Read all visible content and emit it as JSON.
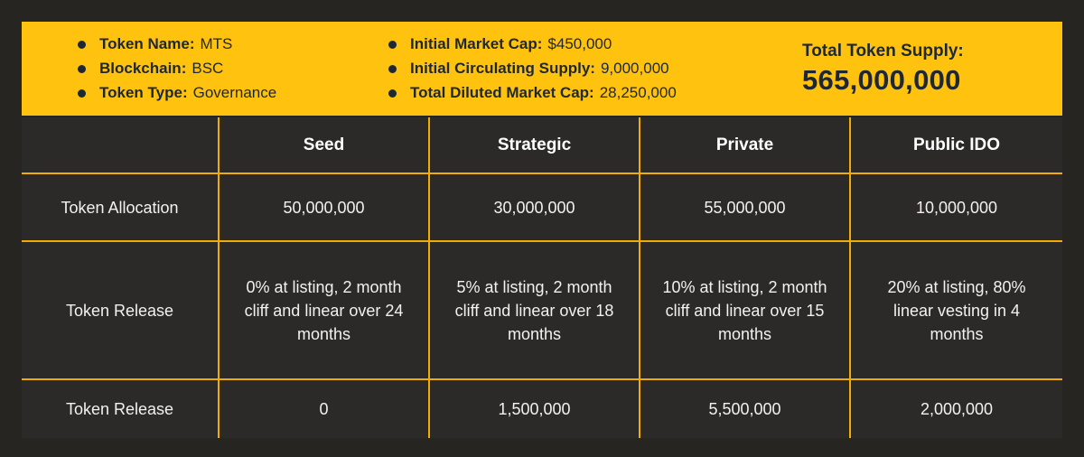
{
  "banner": {
    "bg_color": "#FFC20E",
    "text_color": "#1E2734",
    "info_left": [
      {
        "label": "Token Name:",
        "value": "MTS"
      },
      {
        "label": "Blockchain:",
        "value": "BSC"
      },
      {
        "label": "Token Type:",
        "value": "Governance"
      }
    ],
    "info_middle": [
      {
        "label": "Initial Market Cap:",
        "value": "$450,000"
      },
      {
        "label": "Initial Circulating Supply:",
        "value": "9,000,000"
      },
      {
        "label": "Total Diluted Market Cap:",
        "value": "28,250,000"
      }
    ],
    "supply": {
      "label": "Total Token Supply:",
      "value": "565,000,000"
    }
  },
  "table": {
    "border_color": "#F0AD05",
    "columns": [
      "",
      "Seed",
      "Strategic",
      "Private",
      "Public IDO"
    ],
    "rows": [
      {
        "label": "Token Allocation",
        "values": [
          "50,000,000",
          "30,000,000",
          "55,000,000",
          "10,000,000"
        ]
      },
      {
        "label": "Token Release",
        "values": [
          "0% at listing, 2 month cliff and linear over 24 months",
          "5% at listing, 2 month cliff and linear over 18 months",
          "10% at listing, 2 month cliff and linear over 15 months",
          "20% at listing, 80% linear vesting in 4 months"
        ]
      },
      {
        "label": "Token Release",
        "values": [
          "0",
          "1,500,000",
          "5,500,000",
          "2,000,000"
        ]
      }
    ]
  },
  "chart_data": {
    "type": "table",
    "title": "MTS Tokenomics",
    "key_facts": {
      "token_name": "MTS",
      "blockchain": "BSC",
      "token_type": "Governance",
      "initial_market_cap": "$450,000",
      "initial_circulating_supply": "9,000,000",
      "total_diluted_market_cap": "28,250,000",
      "total_token_supply": "565,000,000"
    },
    "columns": [
      "Seed",
      "Strategic",
      "Private",
      "Public IDO"
    ],
    "rows": [
      {
        "metric": "Token Allocation",
        "values": [
          50000000,
          30000000,
          55000000,
          10000000
        ]
      },
      {
        "metric": "Token Release (vesting)",
        "values": [
          "0% at listing, 2 month cliff and linear over 24 months",
          "5% at listing, 2 month cliff and linear over 18 months",
          "10% at listing, 2 month cliff and linear over 15 months",
          "20% at listing, 80% linear vesting in 4 months"
        ]
      },
      {
        "metric": "Token Release (at TGE)",
        "values": [
          0,
          1500000,
          5500000,
          2000000
        ]
      }
    ],
    "layout_hints": {
      "grid": "golden vertical and horizontal rules",
      "background": "dark charcoal"
    }
  }
}
